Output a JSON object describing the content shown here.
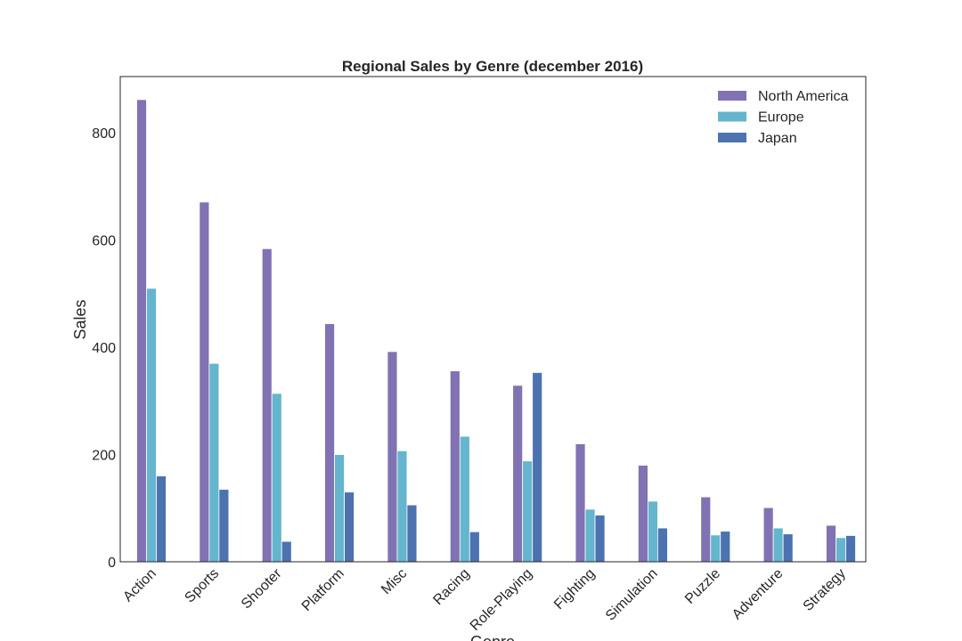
{
  "chart_data": {
    "type": "bar",
    "title": "Regional Sales by Genre (december 2016)",
    "xlabel": "Genre",
    "ylabel": "Sales",
    "ylim": [
      0,
      905
    ],
    "yticks": [
      "0",
      "200",
      "400",
      "600",
      "800"
    ],
    "grid": false,
    "legend_position": "top-right",
    "categories": [
      "Action",
      "Sports",
      "Shooter",
      "Platform",
      "Misc",
      "Racing",
      "Role-Playing",
      "Fighting",
      "Simulation",
      "Puzzle",
      "Adventure",
      "Strategy"
    ],
    "series": [
      {
        "name": "North America",
        "color": "#8172b3",
        "values": [
          862,
          671,
          584,
          444,
          392,
          356,
          329,
          220,
          180,
          121,
          101,
          68
        ]
      },
      {
        "name": "Europe",
        "color": "#64b5cd",
        "values": [
          510,
          370,
          314,
          200,
          207,
          234,
          188,
          98,
          113,
          50,
          63,
          45
        ]
      },
      {
        "name": "Japan",
        "color": "#4c72b0",
        "values": [
          160,
          135,
          38,
          130,
          106,
          56,
          353,
          87,
          63,
          57,
          52,
          49
        ]
      }
    ]
  }
}
